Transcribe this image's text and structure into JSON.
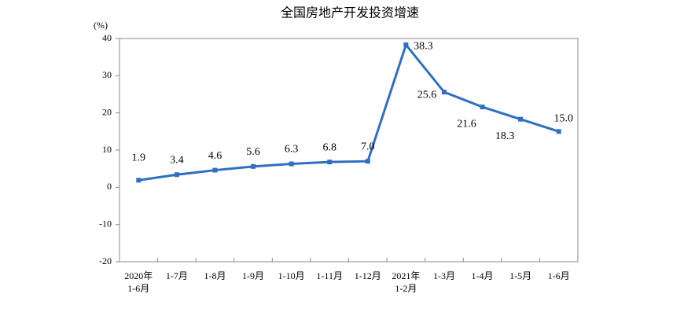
{
  "chart_data": {
    "type": "line",
    "title": "全国房地产开发投资增速",
    "y_label": "(%)",
    "categories": [
      "2020年\n1-6月",
      "1-7月",
      "1-8月",
      "1-9月",
      "1-10月",
      "1-11月",
      "1-12月",
      "2021年\n1-2月",
      "1-3月",
      "1-4月",
      "1-5月",
      "1-6月"
    ],
    "values": [
      1.9,
      3.4,
      4.6,
      5.6,
      6.3,
      6.8,
      7.0,
      38.3,
      25.6,
      21.6,
      18.3,
      15.0
    ],
    "value_labels": [
      "1.9",
      "3.4",
      "4.6",
      "5.6",
      "6.3",
      "6.8",
      "7.0",
      "38.3",
      "25.6",
      "21.6",
      "18.3",
      "15.0"
    ],
    "color": "#2e6fc2",
    "ylim": [
      -20,
      40
    ],
    "yticks": [
      -20,
      -10,
      0,
      10,
      20,
      30,
      40
    ],
    "grid": false
  }
}
